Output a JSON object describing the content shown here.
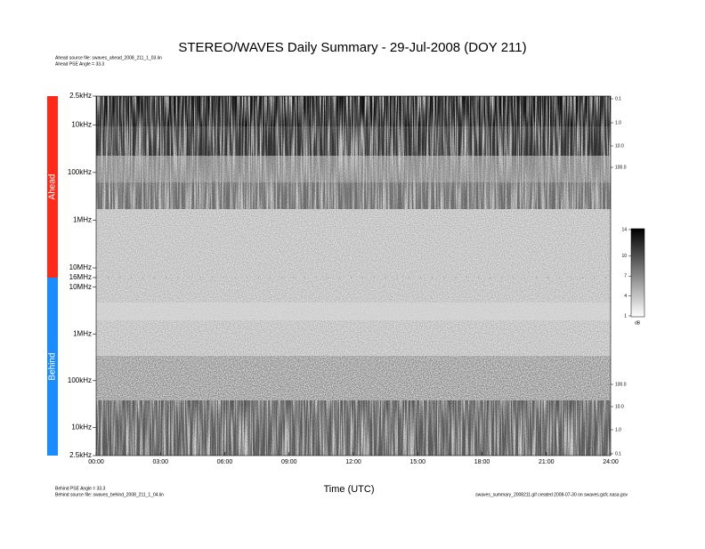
{
  "chart_data": {
    "type": "spectrogram",
    "title": "STEREO/WAVES Daily Summary - 29-Jul-2008 (DOY 211)",
    "x_label": "Time (UTC)",
    "xlim": [
      0,
      24
    ],
    "xticks": [
      {
        "value": 0,
        "label": "00:00"
      },
      {
        "value": 3,
        "label": "03:00"
      },
      {
        "value": 6,
        "label": "06:00"
      },
      {
        "value": 9,
        "label": "09:00"
      },
      {
        "value": 12,
        "label": "12:00"
      },
      {
        "value": 15,
        "label": "15:00"
      },
      {
        "value": 18,
        "label": "18:00"
      },
      {
        "value": 21,
        "label": "21:00"
      },
      {
        "value": 24,
        "label": "24:00"
      }
    ],
    "panels": [
      {
        "name": "Ahead",
        "color": "#ff2a1a",
        "log": true,
        "inverted": true,
        "ylim": [
          2500,
          16000000
        ],
        "yticks": [
          {
            "value": 2500,
            "label": "2.5kHz"
          },
          {
            "value": 10000,
            "label": "10kHz"
          },
          {
            "value": 100000,
            "label": "100kHz"
          },
          {
            "value": 1000000,
            "label": "1MHz"
          },
          {
            "value": 10000000,
            "label": "10MHz"
          },
          {
            "value": 16000000,
            "label": "16MHz"
          }
        ],
        "right_labels": [
          "0.1",
          "1.0",
          "10.0",
          "100.0"
        ]
      },
      {
        "name": "Behind",
        "color": "#1a8cff",
        "log": true,
        "inverted": false,
        "ylim": [
          2500,
          16000000
        ],
        "yticks": [
          {
            "value": 2500,
            "label": "2.5kHz"
          },
          {
            "value": 10000,
            "label": "10kHz"
          },
          {
            "value": 100000,
            "label": "100kHz"
          },
          {
            "value": 1000000,
            "label": "1MHz"
          },
          {
            "value": 10000000,
            "label": "10MHz"
          }
        ],
        "right_labels": [
          "100.0",
          "10.0",
          "1.0",
          "0.1"
        ]
      }
    ],
    "colorbar": {
      "unit": "dB",
      "ylim": [
        1,
        14
      ],
      "yticks": [
        1,
        4,
        7,
        10,
        14
      ]
    },
    "notes": {
      "ahead_source": "Ahead source file: swaves_ahead_2008_211_1_03.lin",
      "ahead_angle": "Ahead PSE Angle = 33.3",
      "behind_angle": "Behind PSE Angle = 33.3",
      "behind_source": "Behind source file: swaves_behind_2008_211_1_04.lin",
      "footer": "swaves_summary_2008211.gif created 2008-07-30 on swaves.gsfc.nasa.gov"
    }
  }
}
